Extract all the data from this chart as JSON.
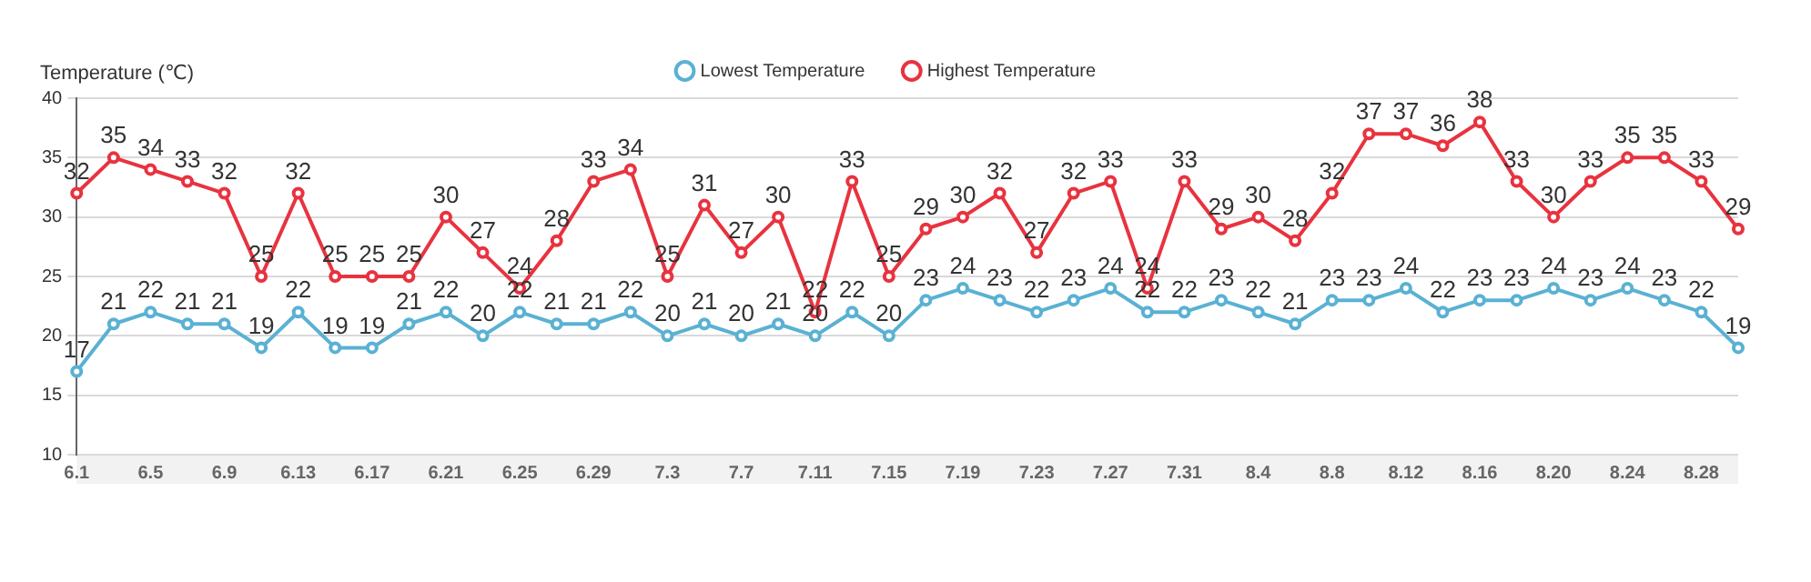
{
  "chart_data": {
    "type": "line",
    "ylabel": "Temperature (℃)",
    "categories": [
      "6.1",
      null,
      "6.5",
      null,
      "6.9",
      null,
      "6.13",
      null,
      "6.17",
      null,
      "6.21",
      null,
      "6.25",
      null,
      "6.29",
      null,
      "7.3",
      null,
      "7.7",
      null,
      "7.11",
      null,
      "7.15",
      null,
      "7.19",
      null,
      "7.23",
      null,
      "7.27",
      null,
      "7.31",
      null,
      "8.4",
      null,
      "8.8",
      null,
      "8.12",
      null,
      "8.16",
      null,
      "8.20",
      null,
      "8.24",
      null,
      "8.28",
      null
    ],
    "series": [
      {
        "name": "Lowest Temperature",
        "color": "#5ab1d3",
        "values": [
          17,
          21,
          22,
          21,
          21,
          19,
          22,
          19,
          19,
          21,
          22,
          20,
          22,
          21,
          21,
          22,
          20,
          21,
          20,
          21,
          20,
          22,
          20,
          23,
          24,
          23,
          22,
          23,
          24,
          22,
          22,
          23,
          22,
          21,
          23,
          23,
          24,
          22,
          23,
          23,
          24,
          23,
          24,
          23,
          22,
          19
        ]
      },
      {
        "name": "Highest Temperature",
        "color": "#e8333f",
        "values": [
          32,
          35,
          34,
          33,
          32,
          25,
          32,
          25,
          25,
          25,
          30,
          27,
          24,
          28,
          33,
          34,
          25,
          31,
          27,
          30,
          22,
          33,
          25,
          29,
          30,
          32,
          27,
          32,
          33,
          24,
          33,
          29,
          30,
          28,
          32,
          37,
          37,
          36,
          38,
          33,
          30,
          33,
          35,
          35,
          33,
          29
        ]
      }
    ],
    "ylim": [
      10,
      40
    ],
    "yticks": [
      10,
      15,
      20,
      25,
      30,
      35,
      40
    ],
    "grid": "y",
    "legend": "top",
    "marker": "circle",
    "line_style": "solid",
    "data_labels": true
  }
}
